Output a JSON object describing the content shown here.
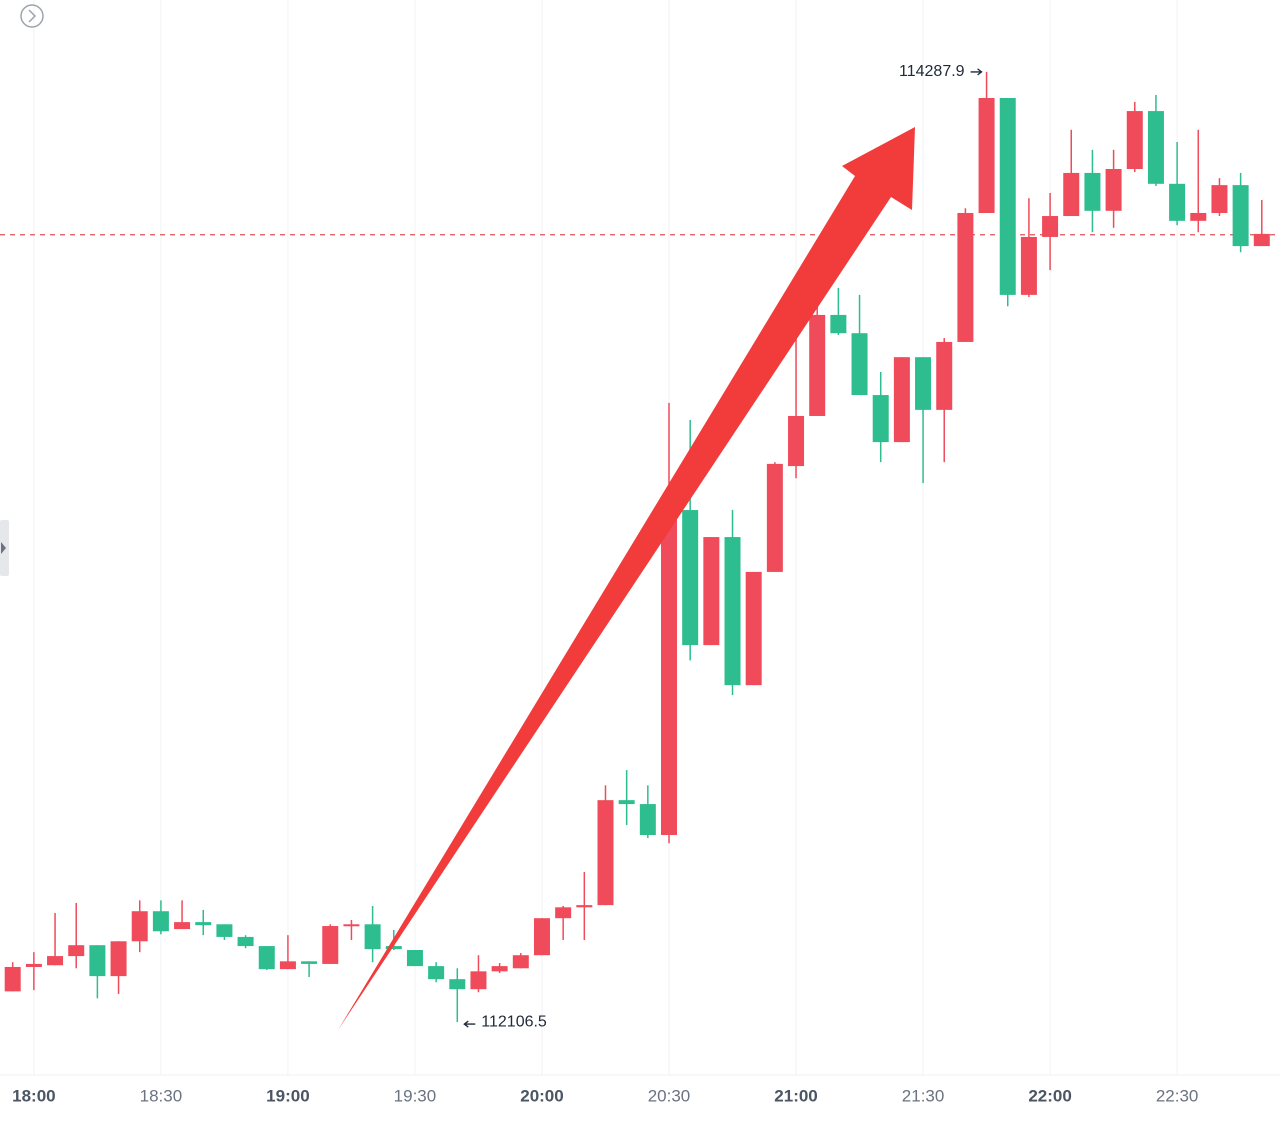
{
  "chart_data": {
    "type": "candlestick",
    "x": [
      1075,
      1080,
      1085,
      1090,
      1095,
      1100,
      1105,
      1110,
      1115,
      1120,
      1125,
      1130,
      1135,
      1140,
      1145,
      1150,
      1155,
      1160,
      1165,
      1170,
      1175,
      1180,
      1185,
      1190,
      1195,
      1200,
      1205,
      1210,
      1215,
      1220,
      1225,
      1230,
      1235,
      1240,
      1245,
      1250,
      1255,
      1260,
      1265,
      1270,
      1275,
      1280,
      1285,
      1290,
      1295,
      1300,
      1305,
      1310,
      1315,
      1320,
      1325,
      1330,
      1335,
      1340,
      1345,
      1350,
      1355,
      1360,
      1365,
      1370
    ],
    "open": [
      112177,
      112233,
      112237,
      112258,
      112283,
      112212,
      112292,
      112361,
      112320,
      112336,
      112331,
      112302,
      112281,
      112228,
      112246,
      112240,
      112327,
      112331,
      112281,
      112272,
      112235,
      112205,
      112182,
      112223,
      112230,
      112260,
      112345,
      112370,
      112375,
      112616,
      112607,
      112536,
      113282,
      112972,
      113220,
      112880,
      113140,
      113383,
      113498,
      113730,
      113688,
      113546,
      113438,
      113633,
      113512,
      113668,
      113964,
      114228,
      113776,
      113909,
      113957,
      114056,
      113969,
      114065,
      114198,
      114031,
      113946,
      113964,
      114028,
      113888
    ],
    "high": [
      112244,
      112267,
      112357,
      112380,
      112283,
      112292,
      112386,
      112386,
      112386,
      112364,
      112331,
      112306,
      112281,
      112306,
      112246,
      112331,
      112341,
      112373,
      112318,
      112272,
      112244,
      112230,
      112260,
      112242,
      112265,
      112345,
      112373,
      112451,
      112650,
      112685,
      112650,
      113528,
      113489,
      113220,
      113282,
      113140,
      113392,
      113695,
      113764,
      113792,
      113776,
      113599,
      113633,
      113633,
      113677,
      113975,
      114287.9,
      114228,
      113998,
      114010,
      114155,
      114109,
      114109,
      114219,
      114235,
      114127,
      114155,
      114044,
      114056,
      113994
    ],
    "low": [
      112177,
      112180,
      112237,
      112230,
      112161,
      112171,
      112267,
      112308,
      112320,
      112306,
      112295,
      112276,
      112226,
      112228,
      112210,
      112240,
      112295,
      112244,
      112272,
      112235,
      112198,
      112106.5,
      112175,
      112219,
      112230,
      112260,
      112295,
      112295,
      112375,
      112559,
      112529,
      112517,
      112937,
      112972,
      112857,
      112880,
      113140,
      113355,
      113498,
      113684,
      113546,
      113392,
      113438,
      113344,
      113392,
      113668,
      113964,
      113750,
      113771,
      113833,
      113957,
      113920,
      113930,
      114058,
      114026,
      113936,
      113920,
      113957,
      113874,
      113888
    ],
    "close": [
      112233,
      112240,
      112258,
      112283,
      112212,
      112292,
      112361,
      112315,
      112336,
      112329,
      112302,
      112281,
      112228,
      112246,
      112240,
      112327,
      112331,
      112274,
      112274,
      112235,
      112205,
      112182,
      112223,
      112235,
      112260,
      112345,
      112370,
      112375,
      112616,
      112607,
      112536,
      113282,
      112972,
      113220,
      112880,
      113140,
      113388,
      113498,
      113730,
      113688,
      113546,
      113438,
      113633,
      113512,
      113668,
      113964,
      114228,
      113776,
      113909,
      113957,
      114056,
      113969,
      114065,
      114198,
      114031,
      113946,
      113964,
      114028,
      113888,
      113916
    ],
    "up_color": "#ef4b5a",
    "down_color": "#2dbd8f",
    "price_line": 113914,
    "xlim": [
      1072,
      1374.3
    ],
    "ylim": [
      111985,
      114453
    ],
    "xticks": [
      {
        "value": 1080,
        "label": "18:00"
      },
      {
        "value": 1110,
        "label": "18:30"
      },
      {
        "value": 1140,
        "label": "19:00"
      },
      {
        "value": 1170,
        "label": "19:30"
      },
      {
        "value": 1200,
        "label": "20:00"
      },
      {
        "value": 1230,
        "label": "20:30"
      },
      {
        "value": 1260,
        "label": "21:00"
      },
      {
        "value": 1290,
        "label": "21:30"
      },
      {
        "value": 1320,
        "label": "22:00"
      },
      {
        "value": 1350,
        "label": "22:30"
      }
    ],
    "xgrid": true
  }
}
